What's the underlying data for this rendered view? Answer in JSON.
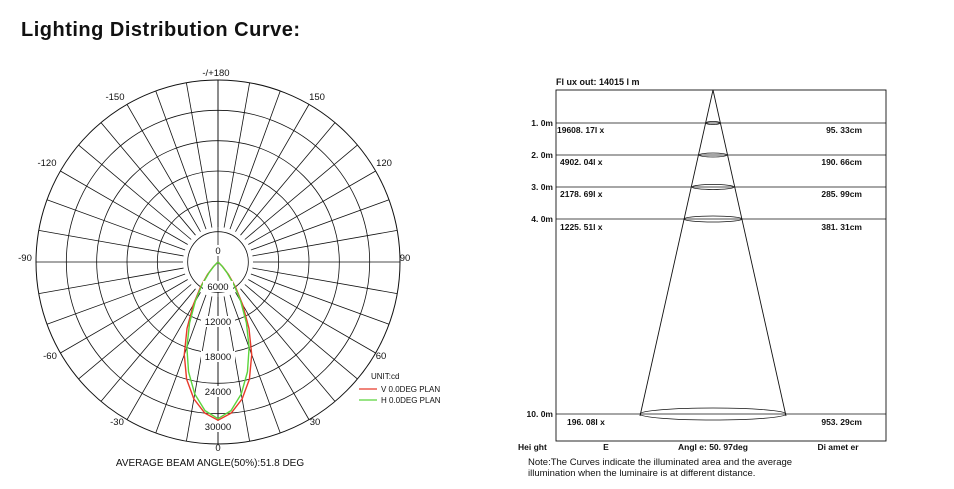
{
  "title": "Lighting Distribution Curve:",
  "polar": {
    "angle_labels": {
      "top": "-/+180",
      "bottom": "0",
      "left_top1": "-150",
      "left_top2": "-120",
      "left_mid": "-90",
      "left_bot1": "-60",
      "left_bot2": "-30",
      "right_top1": "150",
      "right_top2": "120",
      "right_mid": "90",
      "right_bot1": "60",
      "right_bot2": "30"
    },
    "radial_labels": [
      "0",
      "6000",
      "12000",
      "18000",
      "24000",
      "30000"
    ],
    "unit": "UNIT:cd",
    "legend": [
      {
        "label": "V 0.0DEG PLAN",
        "color": "#e83a2a"
      },
      {
        "label": "H 0.0DEG PLAN",
        "color": "#5ad43c"
      }
    ],
    "beam_angle": "AVERAGE BEAM ANGLE(50%):51.8 DEG"
  },
  "chart_data": {
    "type": "polar",
    "unit": "cd",
    "r_max": 36000,
    "r_ticks": [
      0,
      6000,
      12000,
      18000,
      24000,
      30000
    ],
    "series": [
      {
        "name": "V 0.0DEG PLAN",
        "color": "#e83a2a",
        "angles": [
          0,
          5,
          10,
          15,
          20,
          25,
          30,
          35,
          40,
          45,
          50
        ],
        "values": [
          31300,
          30000,
          27500,
          24000,
          19500,
          14500,
          9800,
          6000,
          3200,
          1300,
          0
        ]
      },
      {
        "name": "H 0.0DEG PLAN",
        "color": "#5ad43c",
        "angles": [
          0,
          5,
          10,
          15,
          20,
          25,
          30,
          35,
          40,
          45,
          50
        ],
        "values": [
          31000,
          29500,
          26500,
          22500,
          18000,
          13300,
          9000,
          5500,
          2800,
          1100,
          0
        ]
      }
    ]
  },
  "cone": {
    "flux": "Fl ux  out: 14015  l m",
    "rows": [
      {
        "height": "1. 0m",
        "lux": "19608. 17l x",
        "diameter": "95. 33cm"
      },
      {
        "height": "2. 0m",
        "lux": "4902. 04l x",
        "diameter": "190. 66cm"
      },
      {
        "height": "3. 0m",
        "lux": "2178. 69l x",
        "diameter": "285. 99cm"
      },
      {
        "height": "4. 0m",
        "lux": "1225. 51l x",
        "diameter": "381. 31cm"
      },
      {
        "height": "10. 0m",
        "lux": "196. 08l x",
        "diameter": "953. 29cm"
      }
    ],
    "footer": {
      "height": "Hei ght",
      "e": "E",
      "angle": "Angl e: 50. 97deg",
      "diameter": "Di amet er"
    },
    "note_line1": "Note:The Curves indicate the illuminated area and the average",
    "note_line2": "illumination when the luminaire is at different distance."
  }
}
